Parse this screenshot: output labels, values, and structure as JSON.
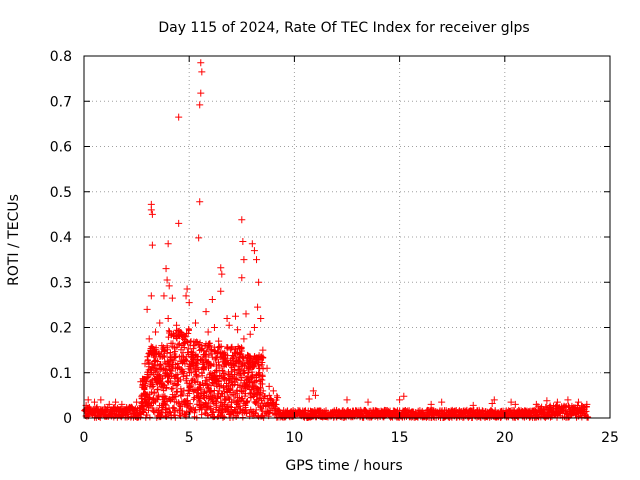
{
  "chart_data": {
    "type": "scatter",
    "title": "Day 115 of 2024, Rate Of TEC Index for receiver glps",
    "xlabel": "GPS time / hours",
    "ylabel": "ROTI / TECUs",
    "xlim": [
      0,
      25
    ],
    "ylim": [
      0,
      0.8
    ],
    "xticks": [
      0,
      5,
      10,
      15,
      20,
      25
    ],
    "yticks": [
      0,
      0.1,
      0.2,
      0.3,
      0.4,
      0.5,
      0.6,
      0.7,
      0.8
    ],
    "xtick_labels": [
      "0",
      "5",
      "10",
      "15",
      "20",
      "25"
    ],
    "ytick_labels": [
      "0",
      "0.1",
      "0.2",
      "0.3",
      "0.4",
      "0.5",
      "0.6",
      "0.7",
      "0.8"
    ],
    "grid": true,
    "marker": "+",
    "series": [
      {
        "name": "ROTI",
        "color": "#ff0000",
        "points": [
          [
            4.5,
            0.665
          ],
          [
            5.55,
            0.785
          ],
          [
            5.6,
            0.765
          ],
          [
            5.55,
            0.718
          ],
          [
            5.5,
            0.692
          ],
          [
            5.5,
            0.478
          ],
          [
            3.2,
            0.472
          ],
          [
            3.2,
            0.46
          ],
          [
            3.25,
            0.45
          ],
          [
            4.5,
            0.43
          ],
          [
            3.25,
            0.382
          ],
          [
            5.45,
            0.398
          ],
          [
            4.0,
            0.385
          ],
          [
            7.5,
            0.438
          ],
          [
            7.55,
            0.39
          ],
          [
            8.0,
            0.385
          ],
          [
            8.1,
            0.37
          ],
          [
            7.6,
            0.35
          ],
          [
            8.2,
            0.35
          ],
          [
            3.9,
            0.33
          ],
          [
            6.5,
            0.332
          ],
          [
            6.55,
            0.318
          ],
          [
            3.95,
            0.305
          ],
          [
            4.05,
            0.292
          ],
          [
            7.5,
            0.31
          ],
          [
            8.3,
            0.3
          ],
          [
            6.1,
            0.262
          ],
          [
            6.5,
            0.28
          ],
          [
            3.8,
            0.27
          ],
          [
            3.2,
            0.27
          ],
          [
            4.2,
            0.265
          ],
          [
            4.9,
            0.285
          ],
          [
            4.85,
            0.27
          ],
          [
            8.25,
            0.245
          ],
          [
            5.0,
            0.255
          ],
          [
            5.8,
            0.235
          ],
          [
            3.0,
            0.24
          ],
          [
            4.0,
            0.22
          ],
          [
            6.8,
            0.22
          ],
          [
            7.2,
            0.225
          ],
          [
            7.7,
            0.23
          ],
          [
            8.4,
            0.22
          ],
          [
            3.6,
            0.21
          ],
          [
            4.4,
            0.205
          ],
          [
            5.3,
            0.21
          ],
          [
            6.2,
            0.2
          ],
          [
            6.9,
            0.205
          ],
          [
            7.3,
            0.195
          ],
          [
            8.1,
            0.2
          ],
          [
            3.4,
            0.19
          ],
          [
            5.9,
            0.19
          ],
          [
            7.9,
            0.185
          ],
          [
            3.1,
            0.175
          ],
          [
            4.7,
            0.18
          ],
          [
            6.4,
            0.17
          ],
          [
            7.6,
            0.175
          ],
          [
            3.7,
            0.16
          ],
          [
            4.3,
            0.155
          ],
          [
            5.2,
            0.16
          ],
          [
            6.0,
            0.15
          ],
          [
            7.0,
            0.155
          ],
          [
            8.5,
            0.15
          ],
          [
            3.3,
            0.14
          ],
          [
            4.1,
            0.135
          ],
          [
            5.7,
            0.14
          ],
          [
            6.6,
            0.13
          ],
          [
            7.4,
            0.135
          ],
          [
            8.2,
            0.13
          ],
          [
            2.9,
            0.12
          ],
          [
            3.5,
            0.125
          ],
          [
            4.8,
            0.12
          ],
          [
            6.3,
            0.115
          ],
          [
            7.1,
            0.12
          ],
          [
            8.0,
            0.115
          ],
          [
            8.7,
            0.11
          ],
          [
            2.7,
            0.08
          ],
          [
            3.0,
            0.09
          ],
          [
            3.9,
            0.1
          ],
          [
            5.1,
            0.1
          ],
          [
            6.7,
            0.095
          ],
          [
            7.8,
            0.1
          ],
          [
            8.8,
            0.07
          ],
          [
            9.0,
            0.06
          ],
          [
            9.2,
            0.045
          ],
          [
            2.5,
            0.035
          ],
          [
            10.9,
            0.06
          ],
          [
            11.0,
            0.05
          ],
          [
            10.7,
            0.042
          ],
          [
            12.5,
            0.04
          ],
          [
            13.5,
            0.035
          ],
          [
            15.2,
            0.048
          ],
          [
            15.0,
            0.04
          ],
          [
            16.5,
            0.03
          ],
          [
            17.0,
            0.035
          ],
          [
            18.5,
            0.028
          ],
          [
            19.5,
            0.04
          ],
          [
            19.4,
            0.032
          ],
          [
            20.3,
            0.035
          ],
          [
            20.5,
            0.03
          ],
          [
            21.5,
            0.03
          ],
          [
            22.0,
            0.038
          ],
          [
            22.5,
            0.035
          ],
          [
            23.0,
            0.04
          ],
          [
            23.5,
            0.035
          ],
          [
            23.9,
            0.03
          ],
          [
            0.2,
            0.04
          ],
          [
            0.5,
            0.035
          ],
          [
            0.8,
            0.04
          ],
          [
            1.2,
            0.03
          ],
          [
            1.5,
            0.035
          ],
          [
            1.8,
            0.03
          ],
          [
            0.1,
            0.028
          ]
        ]
      }
    ]
  }
}
